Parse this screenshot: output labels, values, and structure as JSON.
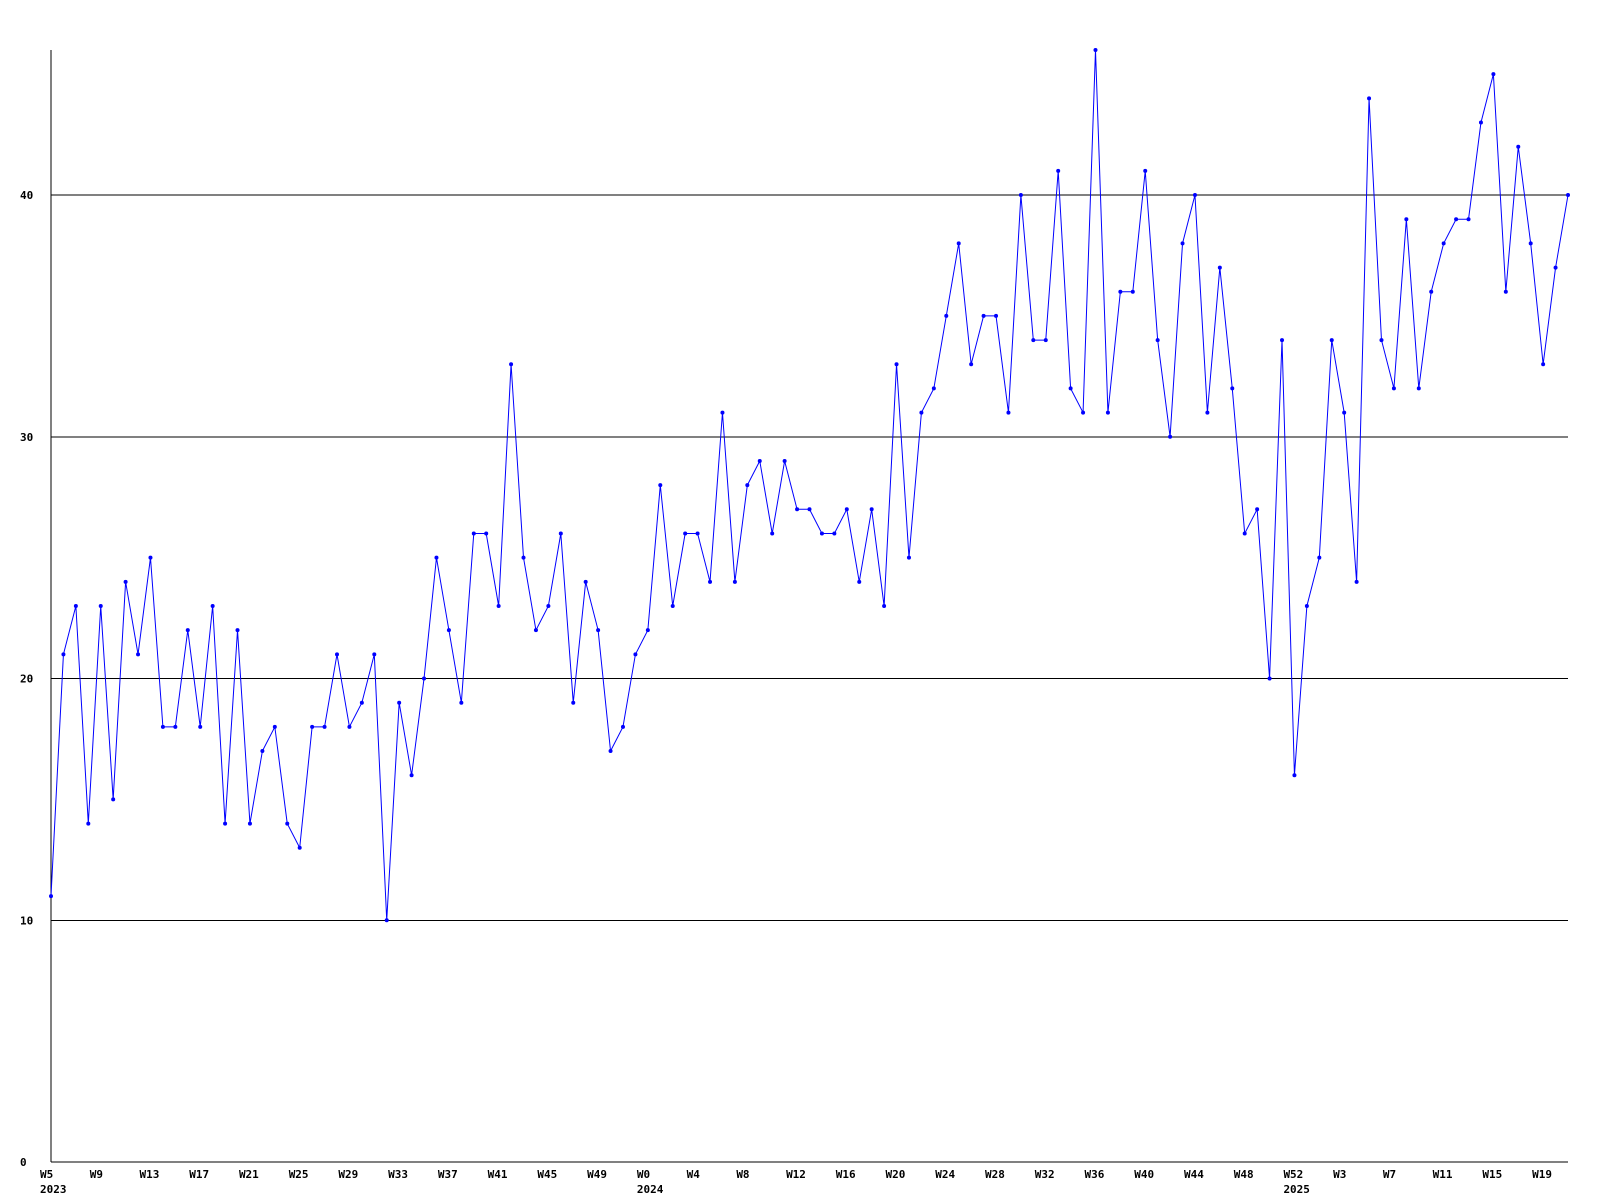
{
  "chart_data": {
    "type": "line",
    "title": "",
    "xlabel": "",
    "ylabel": "",
    "ylim": [
      0,
      46
    ],
    "yticks": [
      0,
      10,
      20,
      30,
      40
    ],
    "grid": "horizontal",
    "colors": {
      "line": "#0000ff",
      "axis": "#000000",
      "grid": "#000000"
    },
    "x_tick_labels": [
      "W5",
      "W9",
      "W13",
      "W17",
      "W21",
      "W25",
      "W29",
      "W33",
      "W37",
      "W41",
      "W45",
      "W49",
      "W0",
      "W4",
      "W8",
      "W12",
      "W16",
      "W20",
      "W24",
      "W28",
      "W32",
      "W36",
      "W40",
      "W44",
      "W48",
      "W52",
      "W3",
      "W7",
      "W11",
      "W15",
      "W19"
    ],
    "year_labels": [
      "2023",
      "2024",
      "2025"
    ],
    "series": [
      {
        "values": [
          11,
          21,
          23,
          14,
          23,
          15,
          24,
          21,
          25,
          18,
          18,
          22,
          18,
          23,
          14,
          22,
          14,
          17,
          18,
          14,
          13,
          18,
          18,
          21,
          18,
          19,
          21,
          10,
          19,
          16,
          20,
          25,
          22,
          19,
          26,
          26,
          23,
          33,
          25,
          22,
          23,
          26,
          19,
          24,
          22,
          17,
          18,
          21,
          22,
          28,
          23,
          26,
          26,
          24,
          31,
          24,
          28,
          29,
          26,
          29,
          27,
          27,
          26,
          26,
          27,
          24,
          27,
          23,
          33,
          25,
          31,
          32,
          35,
          38,
          33,
          35,
          35,
          31,
          40,
          34,
          34,
          41,
          32,
          31,
          46,
          31,
          36,
          36,
          41,
          34,
          30,
          38,
          40,
          31,
          37,
          32,
          26,
          27,
          20,
          34,
          16,
          23,
          25,
          34,
          31,
          24,
          44,
          34,
          32,
          39,
          32,
          36,
          38,
          39,
          39,
          43,
          45,
          36,
          42,
          38,
          33,
          37,
          40
        ]
      }
    ]
  }
}
